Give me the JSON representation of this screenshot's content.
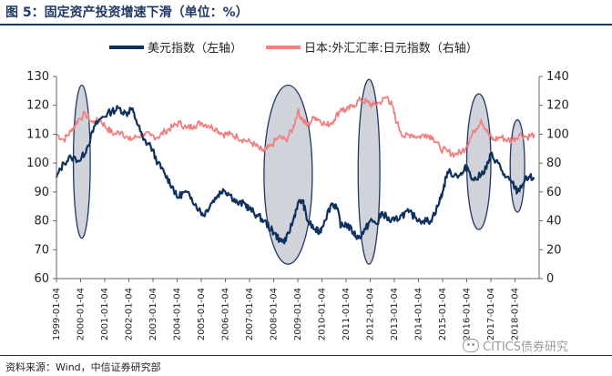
{
  "header": {
    "title": "图 5：固定资产投资增速下滑（单位：%）"
  },
  "footer": {
    "source": "资料来源：Wind，中信证券研究部",
    "watermark": "CITICS债券研究"
  },
  "colors": {
    "usd": "#10315e",
    "jpy": "#f08080",
    "ellipse_fill": "#c8cbd3",
    "ellipse_stroke": "#1f3864"
  },
  "chart_data": {
    "type": "line",
    "title": "",
    "legend": {
      "placement": "top-center",
      "entries": [
        "美元指数（左轴）",
        "日本:外汇汇率:日元指数（右轴）"
      ]
    },
    "x_tick_labels": [
      "1999-01-04",
      "2000-01-04",
      "2001-01-04",
      "2002-01-04",
      "2003-01-04",
      "2004-01-04",
      "2005-01-04",
      "2006-01-04",
      "2007-01-04",
      "2008-01-04",
      "2009-01-04",
      "2010-01-04",
      "2011-01-04",
      "2012-01-04",
      "2013-01-04",
      "2014-01-04",
      "2015-01-04",
      "2016-01-04",
      "2017-01-04",
      "2018-01-04"
    ],
    "left_axis": {
      "min": 60,
      "max": 130,
      "ticks": [
        60,
        70,
        80,
        90,
        100,
        110,
        120,
        130
      ]
    },
    "right_axis": {
      "min": 0,
      "max": 140,
      "ticks": [
        0,
        20,
        40,
        60,
        80,
        100,
        120,
        140
      ]
    },
    "grid": false,
    "series": [
      {
        "name": "美元指数（左轴）",
        "axis": "left",
        "points": [
          [
            1999.0,
            95
          ],
          [
            1999.3,
            100
          ],
          [
            1999.6,
            102
          ],
          [
            2000.0,
            101
          ],
          [
            2000.3,
            106
          ],
          [
            2000.6,
            113
          ],
          [
            2000.9,
            116
          ],
          [
            2001.3,
            118
          ],
          [
            2001.6,
            119
          ],
          [
            2001.9,
            117
          ],
          [
            2002.1,
            119
          ],
          [
            2002.3,
            115
          ],
          [
            2002.6,
            108
          ],
          [
            2002.9,
            106
          ],
          [
            2003.2,
            100
          ],
          [
            2003.5,
            96
          ],
          [
            2003.8,
            92
          ],
          [
            2004.0,
            88
          ],
          [
            2004.3,
            90
          ],
          [
            2004.6,
            88
          ],
          [
            2004.9,
            84
          ],
          [
            2005.1,
            82
          ],
          [
            2005.4,
            86
          ],
          [
            2005.7,
            89
          ],
          [
            2005.9,
            91
          ],
          [
            2006.2,
            89
          ],
          [
            2006.5,
            86
          ],
          [
            2006.8,
            86
          ],
          [
            2007.0,
            84
          ],
          [
            2007.3,
            82
          ],
          [
            2007.6,
            80
          ],
          [
            2007.9,
            77
          ],
          [
            2008.0,
            76
          ],
          [
            2008.3,
            73
          ],
          [
            2008.5,
            73
          ],
          [
            2008.8,
            80
          ],
          [
            2009.0,
            86
          ],
          [
            2009.2,
            87
          ],
          [
            2009.4,
            80
          ],
          [
            2009.7,
            77
          ],
          [
            2009.9,
            76
          ],
          [
            2010.1,
            80
          ],
          [
            2010.4,
            86
          ],
          [
            2010.6,
            85
          ],
          [
            2010.8,
            78
          ],
          [
            2011.0,
            79
          ],
          [
            2011.3,
            76
          ],
          [
            2011.5,
            74
          ],
          [
            2011.8,
            77
          ],
          [
            2012.0,
            80
          ],
          [
            2012.3,
            79
          ],
          [
            2012.5,
            83
          ],
          [
            2012.8,
            80
          ],
          [
            2013.0,
            80
          ],
          [
            2013.3,
            82
          ],
          [
            2013.6,
            83
          ],
          [
            2013.9,
            81
          ],
          [
            2014.2,
            80
          ],
          [
            2014.5,
            80
          ],
          [
            2014.8,
            85
          ],
          [
            2015.0,
            90
          ],
          [
            2015.2,
            97
          ],
          [
            2015.5,
            96
          ],
          [
            2015.8,
            96
          ],
          [
            2016.0,
            99
          ],
          [
            2016.3,
            94
          ],
          [
            2016.6,
            96
          ],
          [
            2016.9,
            100
          ],
          [
            2017.0,
            103
          ],
          [
            2017.3,
            100
          ],
          [
            2017.6,
            95
          ],
          [
            2017.9,
            93
          ],
          [
            2018.1,
            90
          ],
          [
            2018.4,
            94
          ],
          [
            2018.6,
            95
          ],
          [
            2018.8,
            95
          ]
        ]
      },
      {
        "name": "日本:外汇汇率:日元指数（右轴）",
        "axis": "right",
        "points": [
          [
            1999.0,
            100
          ],
          [
            1999.3,
            96
          ],
          [
            1999.6,
            102
          ],
          [
            1999.9,
            110
          ],
          [
            2000.2,
            114
          ],
          [
            2000.5,
            108
          ],
          [
            2000.8,
            110
          ],
          [
            2001.1,
            104
          ],
          [
            2001.4,
            100
          ],
          [
            2001.7,
            102
          ],
          [
            2002.0,
            96
          ],
          [
            2002.3,
            98
          ],
          [
            2002.6,
            100
          ],
          [
            2002.9,
            99
          ],
          [
            2003.2,
            98
          ],
          [
            2003.5,
            102
          ],
          [
            2003.8,
            105
          ],
          [
            2004.1,
            108
          ],
          [
            2004.4,
            104
          ],
          [
            2004.7,
            106
          ],
          [
            2005.0,
            108
          ],
          [
            2005.3,
            106
          ],
          [
            2005.6,
            104
          ],
          [
            2005.9,
            100
          ],
          [
            2006.2,
            100
          ],
          [
            2006.5,
            98
          ],
          [
            2006.8,
            96
          ],
          [
            2007.1,
            94
          ],
          [
            2007.4,
            90
          ],
          [
            2007.6,
            88
          ],
          [
            2007.9,
            92
          ],
          [
            2008.2,
            98
          ],
          [
            2008.5,
            96
          ],
          [
            2008.8,
            104
          ],
          [
            2009.0,
            116
          ],
          [
            2009.2,
            110
          ],
          [
            2009.4,
            106
          ],
          [
            2009.7,
            112
          ],
          [
            2009.9,
            110
          ],
          [
            2010.2,
            106
          ],
          [
            2010.5,
            110
          ],
          [
            2010.8,
            118
          ],
          [
            2011.0,
            116
          ],
          [
            2011.3,
            120
          ],
          [
            2011.6,
            124
          ],
          [
            2011.9,
            122
          ],
          [
            2012.1,
            120
          ],
          [
            2012.4,
            122
          ],
          [
            2012.7,
            126
          ],
          [
            2012.9,
            120
          ],
          [
            2013.1,
            108
          ],
          [
            2013.4,
            98
          ],
          [
            2013.7,
            100
          ],
          [
            2014.0,
            98
          ],
          [
            2014.3,
            100
          ],
          [
            2014.6,
            98
          ],
          [
            2014.9,
            90
          ],
          [
            2015.2,
            88
          ],
          [
            2015.5,
            86
          ],
          [
            2015.8,
            88
          ],
          [
            2016.0,
            92
          ],
          [
            2016.3,
            102
          ],
          [
            2016.6,
            110
          ],
          [
            2016.9,
            100
          ],
          [
            2017.1,
            96
          ],
          [
            2017.4,
            98
          ],
          [
            2017.7,
            96
          ],
          [
            2017.9,
            96
          ],
          [
            2018.2,
            100
          ],
          [
            2018.5,
            98
          ],
          [
            2018.8,
            100
          ]
        ]
      }
    ],
    "annotations": [
      {
        "shape": "ellipse",
        "x": [
          1999.7,
          2000.4
        ],
        "y_left": [
          74,
          127
        ]
      },
      {
        "shape": "ellipse",
        "x": [
          2007.6,
          2009.6
        ],
        "y_left": [
          65,
          127
        ]
      },
      {
        "shape": "ellipse",
        "x": [
          2011.5,
          2012.4
        ],
        "y_left": [
          65,
          129
        ]
      },
      {
        "shape": "ellipse",
        "x": [
          2016.0,
          2017.0
        ],
        "y_left": [
          77,
          124
        ]
      },
      {
        "shape": "ellipse",
        "x": [
          2017.8,
          2018.4
        ],
        "y_left": [
          83,
          115
        ]
      }
    ]
  }
}
